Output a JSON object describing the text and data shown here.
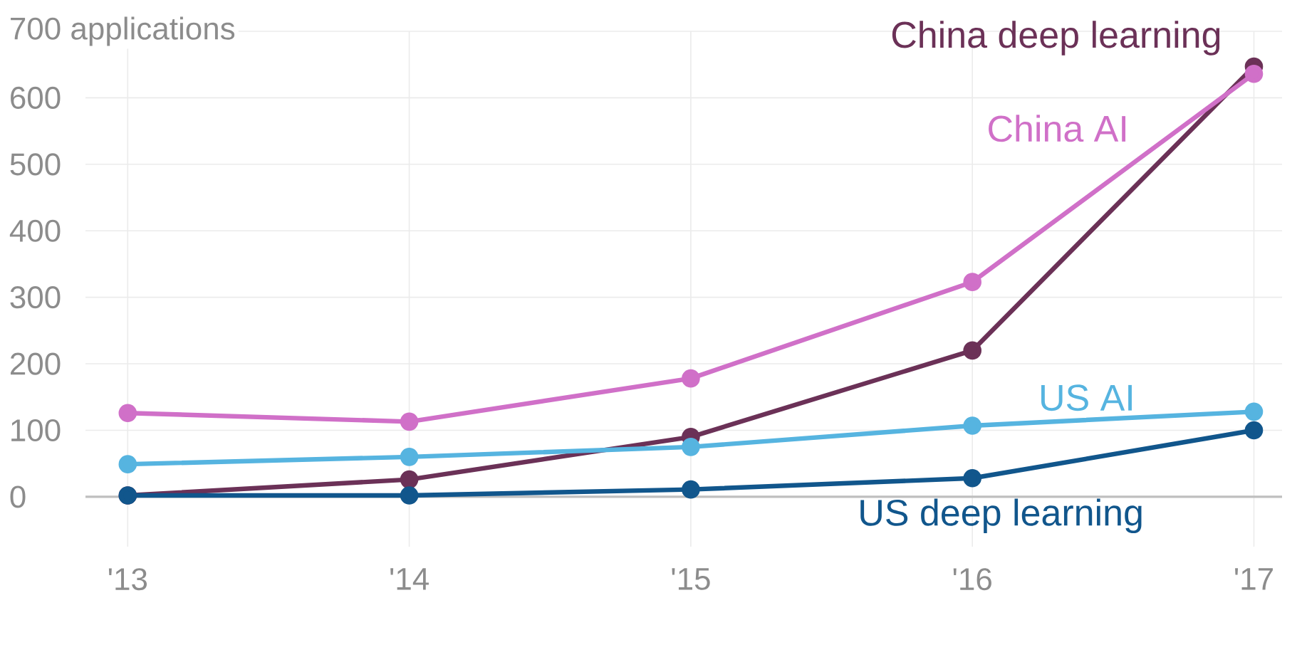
{
  "chart_data": {
    "type": "line",
    "categories": [
      "'13",
      "'14",
      "'15",
      "'16",
      "'17"
    ],
    "series": [
      {
        "name": "China deep learning",
        "color": "#6b3157",
        "values": [
          2,
          26,
          90,
          220,
          647
        ]
      },
      {
        "name": "China AI",
        "color": "#d070c8",
        "values": [
          126,
          113,
          178,
          323,
          636
        ]
      },
      {
        "name": "US AI",
        "color": "#56b4e0",
        "values": [
          49,
          60,
          75,
          107,
          128
        ]
      },
      {
        "name": "US deep learning",
        "color": "#11568c",
        "values": [
          2,
          2,
          11,
          28,
          100
        ]
      }
    ],
    "ylim": [
      -75,
      700
    ],
    "yticks": [
      0,
      100,
      200,
      300,
      400,
      500,
      600,
      {
        "value": 700,
        "label": "700 applications"
      }
    ],
    "grid": true,
    "marker": "circle",
    "line_style": "solid"
  }
}
